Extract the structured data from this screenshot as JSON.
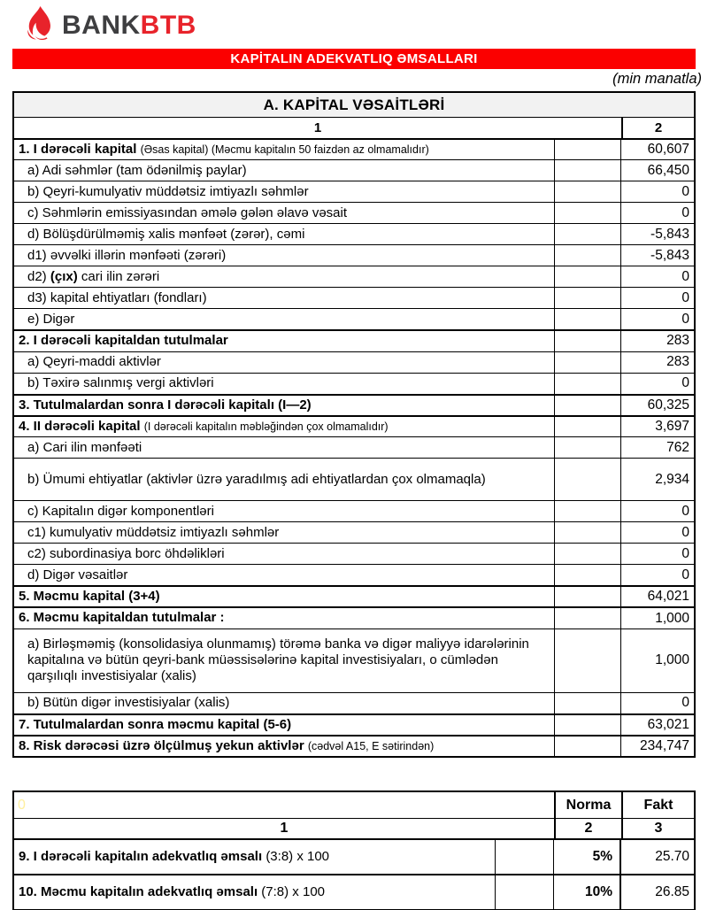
{
  "logo": {
    "bank": "BANK",
    "btb": "BTB",
    "flame_icon": "flame-icon"
  },
  "banner": {
    "title": "KAPİTALIN ADEKVATLIQ ƏMSALLARI"
  },
  "unit_note": "(min manatla)",
  "colors": {
    "banner_red": "#FB0000",
    "logo_red": "#E8232B",
    "logo_gray": "#3E3E40",
    "header_bg": "#F2F2F2",
    "hidden_zero_yellow": "#FFEF9E"
  },
  "capital_table": {
    "title": "A. KAPİTAL VƏSAİTLƏRİ",
    "col1": "1",
    "col2": "2",
    "rows": [
      {
        "style": "section",
        "segments": [
          {
            "text": "1. I dərəcəli kapital ",
            "bold": true
          },
          {
            "text": "(Əsas kapital) (Məcmu kapitalın 50 faizdən  az olmamalıdır)",
            "bold": false,
            "small": true
          }
        ],
        "value": "60,607"
      },
      {
        "style": "sub",
        "segments": [
          {
            "text": "a) Adi səhmlər (tam ödənilmiş paylar)",
            "bold": false
          }
        ],
        "value": "66,450"
      },
      {
        "style": "sub",
        "segments": [
          {
            "text": "b) Qeyri-kumulyativ müddətsiz imtiyazlı səhmlər",
            "bold": false
          }
        ],
        "value": "0"
      },
      {
        "style": "sub",
        "segments": [
          {
            "text": "c) Səhmlərin emissiyasından əmələ gələn  əlavə vəsait",
            "bold": false
          }
        ],
        "value": "0"
      },
      {
        "style": "sub",
        "segments": [
          {
            "text": "d)   Bölüşdürülməmiş xalis mənfəət (zərər), cəmi",
            "bold": false
          }
        ],
        "value": "-5,843"
      },
      {
        "style": "sub",
        "segments": [
          {
            "text": "d1) əvvəlki illərin mənfəəti (zərəri)",
            "bold": false
          }
        ],
        "value": "-5,843"
      },
      {
        "style": "sub",
        "segments": [
          {
            "text": "d2) ",
            "bold": false
          },
          {
            "text": "(çıx)",
            "bold": true
          },
          {
            "text": " cari ilin zərəri",
            "bold": false
          }
        ],
        "value": "0"
      },
      {
        "style": "sub",
        "segments": [
          {
            "text": "d3) kapital ehtiyatları (fondları)",
            "bold": false
          }
        ],
        "value": "0"
      },
      {
        "style": "sub",
        "segments": [
          {
            "text": "e) Digər",
            "bold": false
          }
        ],
        "value": "0"
      },
      {
        "style": "section",
        "segments": [
          {
            "text": "2. I dərəcəli kapitaldan  tutulmalar",
            "bold": true
          }
        ],
        "value": "283"
      },
      {
        "style": "sub",
        "segments": [
          {
            "text": "a) Qeyri-maddi aktivlər",
            "bold": false
          }
        ],
        "value": "283"
      },
      {
        "style": "sub",
        "segments": [
          {
            "text": "b) Təxirə salınmış vergi aktivləri",
            "bold": false
          }
        ],
        "value": "0"
      },
      {
        "style": "section",
        "segments": [
          {
            "text": "3. Tutulmalardan  sonra I dərəcəli kapitalı (I—2)",
            "bold": true
          }
        ],
        "value": "60,325"
      },
      {
        "style": "section",
        "segments": [
          {
            "text": "4. II dərəcəli  kapital ",
            "bold": true
          },
          {
            "text": "(I dərəcəli  kapitalın  məbləğindən çox olmamalıdır)",
            "bold": false,
            "small": true
          }
        ],
        "value": "3,697"
      },
      {
        "style": "sub",
        "segments": [
          {
            "text": "a) Cari ilin mənfəəti",
            "bold": false
          }
        ],
        "value": "762"
      },
      {
        "style": "sub",
        "h": 48,
        "segments": [
          {
            "text": "b) Ümumi ehtiyatlar (aktivlər üzrə yaradılmış adi ehtiyatlardan çox olmamaqla)",
            "bold": false
          }
        ],
        "value": "2,934"
      },
      {
        "style": "sub",
        "segments": [
          {
            "text": "c) Kapitalın digər komponentləri",
            "bold": false
          }
        ],
        "value": "0"
      },
      {
        "style": "sub",
        "segments": [
          {
            "text": "c1) kumulyativ müddətsiz imtiyazlı səhmlər",
            "bold": false
          }
        ],
        "value": "0"
      },
      {
        "style": "sub",
        "segments": [
          {
            "text": "c2) subordinasiya borc öhdəlikləri",
            "bold": false
          }
        ],
        "value": "0"
      },
      {
        "style": "sub",
        "segments": [
          {
            "text": "d) Digər vəsaitlər",
            "bold": false
          }
        ],
        "value": "0"
      },
      {
        "style": "section",
        "segments": [
          {
            "text": "5. Məcmu kapital (3+4)",
            "bold": true
          }
        ],
        "value": "64,021"
      },
      {
        "style": "section",
        "segments": [
          {
            "text": "6. Məcmu kapitaldan tutulmalar :",
            "bold": true
          }
        ],
        "value": "1,000"
      },
      {
        "style": "sub",
        "h": 72,
        "segments": [
          {
            "text": "a) Birləşməmiş (konsolidasiya olunmamış) törəmə banka və digər maliyyə idarələrinin kapitalına və bütün qeyri-bank müəssisələrinə kapital investisiyaları, o cümlədən qarşılıqlı investisiyalar (xalis)",
            "bold": false
          }
        ],
        "value": "1,000"
      },
      {
        "style": "sub",
        "segments": [
          {
            "text": "b) Bütün digər investisiyalar (xalis)",
            "bold": false
          }
        ],
        "value": "0"
      },
      {
        "style": "section",
        "segments": [
          {
            "text": "7. Tutulmalardan  sonra məcmu kapital (5-6)",
            "bold": true
          }
        ],
        "value": "63,021"
      },
      {
        "style": "section",
        "segments": [
          {
            "text": "8. Risk dərəcəsi üzrə ölçülmuş  yekun aktivlər  ",
            "bold": true
          },
          {
            "text": "(cədvəl A15, E sətirindən)",
            "bold": false,
            "small": true
          }
        ],
        "value": "234,747"
      }
    ]
  },
  "ratio_table": {
    "hidden_zero": "0",
    "norma_header": "Norma",
    "fakt_header": "Fakt",
    "col1": "1",
    "col2": "2",
    "col3": "3",
    "rows": [
      {
        "segments": [
          {
            "text": "9. I dərəcəli  kapitalın  adekvatlıq əmsalı ",
            "bold": true
          },
          {
            "text": "(3:8) x 100",
            "bold": false
          }
        ],
        "norma": "5%",
        "fakt": "25.70"
      },
      {
        "segments": [
          {
            "text": "10. Məcmu kapitalın  adekvatlıq  əmsalı ",
            "bold": true
          },
          {
            "text": "(7:8) x 100",
            "bold": false
          }
        ],
        "norma": "10%",
        "fakt": "26.85"
      }
    ]
  }
}
